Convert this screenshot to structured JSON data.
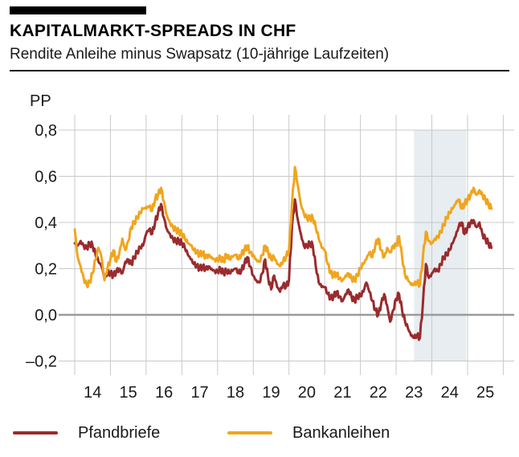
{
  "header": {
    "title": "KAPITALMARKT-SPREADS IN CHF",
    "subtitle": "Rendite Anleihe minus Swapsatz (10-jährige Laufzeiten)"
  },
  "legend": {
    "items": [
      {
        "label": "Pfandbriefe",
        "color": "#992b2e"
      },
      {
        "label": "Bankanleihen",
        "color": "#f1a51d"
      }
    ]
  },
  "colors": {
    "gridline": "#c9c9c9",
    "zero_line": "#9b9b9b",
    "highlight_band": "#e7edf0",
    "text": "#1a1a1a"
  },
  "chart_data": {
    "type": "line",
    "title": "KAPITALMARKT-SPREADS IN CHF",
    "subtitle": "Rendite Anleihe minus Swapsatz (10-jährige Laufzeiten)",
    "ylabel": "PP",
    "xlabel": "",
    "ylim": [
      -0.27,
      0.89
    ],
    "grid": true,
    "legend_position": "bottom",
    "x_start_year": 2014,
    "x_start_month": 1,
    "x_interval": "monthly",
    "y_ticks": [
      {
        "value": 0.8,
        "label": "0,8"
      },
      {
        "value": 0.6,
        "label": "0,6"
      },
      {
        "value": 0.4,
        "label": "0,4"
      },
      {
        "value": 0.2,
        "label": "0,2"
      },
      {
        "value": 0.0,
        "label": "0,0"
      },
      {
        "value": -0.2,
        "label": "–0,2"
      }
    ],
    "x_ticks": [
      {
        "year": 2014,
        "label": "14"
      },
      {
        "year": 2015,
        "label": "15"
      },
      {
        "year": 2016,
        "label": "16"
      },
      {
        "year": 2017,
        "label": "17"
      },
      {
        "year": 2018,
        "label": "18"
      },
      {
        "year": 2019,
        "label": "19"
      },
      {
        "year": 2020,
        "label": "20"
      },
      {
        "year": 2021,
        "label": "21"
      },
      {
        "year": 2022,
        "label": "22"
      },
      {
        "year": 2023,
        "label": "23"
      },
      {
        "year": 2024,
        "label": "24"
      },
      {
        "year": 2025,
        "label": "25"
      }
    ],
    "gridline_years": [
      2014,
      2015,
      2016,
      2017,
      2018,
      2019,
      2020,
      2021,
      2022,
      2023,
      2024,
      2025,
      2026
    ],
    "highlight_band": {
      "from_year": 2023.5,
      "to_year": 2024.96,
      "color": "#e7edf0"
    },
    "series": [
      {
        "name": "Pfandbriefe",
        "color": "#992b2e",
        "values": [
          0.31,
          0.3,
          0.32,
          0.3,
          0.29,
          0.31,
          0.3,
          0.26,
          0.23,
          0.21,
          0.16,
          0.18,
          0.18,
          0.17,
          0.19,
          0.2,
          0.18,
          0.23,
          0.24,
          0.22,
          0.25,
          0.27,
          0.29,
          0.3,
          0.35,
          0.37,
          0.35,
          0.4,
          0.44,
          0.48,
          0.42,
          0.37,
          0.35,
          0.33,
          0.32,
          0.32,
          0.31,
          0.29,
          0.26,
          0.24,
          0.22,
          0.21,
          0.2,
          0.21,
          0.2,
          0.21,
          0.2,
          0.19,
          0.19,
          0.2,
          0.18,
          0.19,
          0.18,
          0.19,
          0.2,
          0.18,
          0.19,
          0.22,
          0.25,
          0.21,
          0.17,
          0.15,
          0.14,
          0.18,
          0.24,
          0.16,
          0.11,
          0.17,
          0.12,
          0.1,
          0.13,
          0.12,
          0.15,
          0.38,
          0.5,
          0.41,
          0.35,
          0.3,
          0.3,
          0.31,
          0.3,
          0.21,
          0.14,
          0.12,
          0.12,
          0.09,
          0.07,
          0.08,
          0.1,
          0.08,
          0.06,
          0.09,
          0.11,
          0.08,
          0.06,
          0.08,
          0.08,
          0.1,
          0.14,
          0.1,
          0.06,
          0.02,
          0.0,
          0.05,
          0.09,
          0.04,
          -0.03,
          0.02,
          0.07,
          0.09,
          0.02,
          -0.03,
          -0.06,
          -0.09,
          -0.1,
          -0.09,
          -0.1,
          0.05,
          0.22,
          0.16,
          0.18,
          0.2,
          0.19,
          0.22,
          0.25,
          0.26,
          0.28,
          0.31,
          0.34,
          0.38,
          0.4,
          0.35,
          0.38,
          0.4,
          0.41,
          0.38,
          0.4,
          0.35,
          0.33,
          0.31,
          0.29
        ]
      },
      {
        "name": "Bankanleihen",
        "color": "#f1a51d",
        "values": [
          0.37,
          0.25,
          0.21,
          0.16,
          0.13,
          0.14,
          0.18,
          0.24,
          0.29,
          0.25,
          0.15,
          0.2,
          0.24,
          0.28,
          0.23,
          0.27,
          0.33,
          0.28,
          0.32,
          0.38,
          0.4,
          0.42,
          0.44,
          0.46,
          0.46,
          0.47,
          0.45,
          0.5,
          0.52,
          0.55,
          0.49,
          0.43,
          0.4,
          0.38,
          0.37,
          0.36,
          0.35,
          0.33,
          0.31,
          0.3,
          0.28,
          0.27,
          0.26,
          0.27,
          0.25,
          0.26,
          0.25,
          0.24,
          0.24,
          0.25,
          0.23,
          0.26,
          0.24,
          0.25,
          0.26,
          0.24,
          0.26,
          0.28,
          0.3,
          0.27,
          0.26,
          0.24,
          0.23,
          0.26,
          0.3,
          0.27,
          0.24,
          0.25,
          0.22,
          0.21,
          0.23,
          0.25,
          0.28,
          0.48,
          0.64,
          0.56,
          0.48,
          0.44,
          0.42,
          0.42,
          0.42,
          0.38,
          0.33,
          0.29,
          0.28,
          0.22,
          0.18,
          0.17,
          0.18,
          0.16,
          0.15,
          0.17,
          0.18,
          0.16,
          0.15,
          0.17,
          0.2,
          0.22,
          0.24,
          0.27,
          0.25,
          0.3,
          0.33,
          0.28,
          0.25,
          0.29,
          0.27,
          0.3,
          0.3,
          0.34,
          0.25,
          0.17,
          0.15,
          0.13,
          0.13,
          0.14,
          0.13,
          0.25,
          0.36,
          0.32,
          0.31,
          0.33,
          0.34,
          0.36,
          0.39,
          0.42,
          0.44,
          0.46,
          0.48,
          0.5,
          0.46,
          0.48,
          0.5,
          0.52,
          0.55,
          0.52,
          0.54,
          0.52,
          0.5,
          0.48,
          0.46
        ]
      }
    ]
  }
}
